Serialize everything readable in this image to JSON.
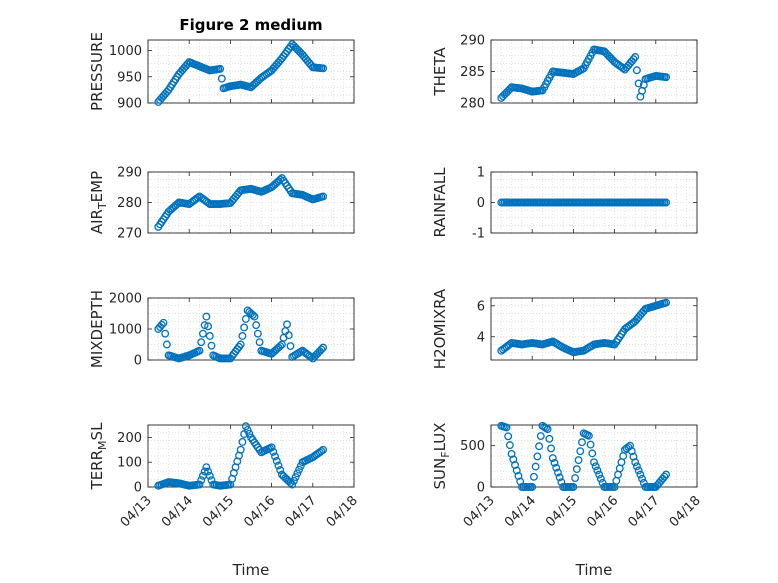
{
  "figure": {
    "title": "Figure 2 medium",
    "xlabel": "Time",
    "x_ticks": [
      "04/13",
      "04/14",
      "04/15",
      "04/16",
      "04/17",
      "04/18"
    ]
  },
  "colors": {
    "marker": "#0072BD",
    "grid": "#d9d9d9",
    "axis": "#262626"
  },
  "chart_data": [
    {
      "type": "scatter",
      "ylabel": "PRESSURE",
      "ylim": [
        900,
        1020
      ],
      "yticks": [
        900,
        950,
        1000
      ],
      "xlim": [
        "04/13",
        "04/18"
      ],
      "grid": true,
      "marker": "open-circle",
      "x": [
        "04/13 06:00",
        "04/13 12:00",
        "04/13 18:00",
        "04/14 00:00",
        "04/14 06:00",
        "04/14 12:00",
        "04/14 18:00",
        "04/14 20:00",
        "04/15 00:00",
        "04/15 06:00",
        "04/15 12:00",
        "04/15 18:00",
        "04/16 00:00",
        "04/16 06:00",
        "04/16 12:00",
        "04/16 18:00",
        "04/17 00:00",
        "04/17 06:00"
      ],
      "y": [
        902,
        925,
        955,
        978,
        970,
        962,
        965,
        928,
        932,
        935,
        930,
        948,
        962,
        985,
        1012,
        992,
        968,
        966
      ]
    },
    {
      "type": "scatter",
      "ylabel": "THETA",
      "ylim": [
        280,
        290
      ],
      "yticks": [
        280,
        285,
        290
      ],
      "xlim": [
        "04/13",
        "04/18"
      ],
      "grid": true,
      "marker": "open-circle",
      "x": [
        "04/13 06:00",
        "04/13 12:00",
        "04/13 18:00",
        "04/14 00:00",
        "04/14 06:00",
        "04/14 12:00",
        "04/14 18:00",
        "04/15 00:00",
        "04/15 06:00",
        "04/15 12:00",
        "04/15 18:00",
        "04/16 00:00",
        "04/16 06:00",
        "04/16 12:00",
        "04/16 15:00",
        "04/16 18:00",
        "04/17 00:00",
        "04/17 06:00"
      ],
      "y": [
        280.8,
        282.5,
        282.3,
        281.8,
        282.0,
        285.0,
        284.8,
        284.6,
        285.5,
        288.5,
        288.2,
        286.5,
        285.3,
        287.3,
        281.0,
        283.8,
        284.3,
        284.1
      ]
    },
    {
      "type": "scatter",
      "ylabel": "AIR_TEMP",
      "ylim": [
        270,
        290
      ],
      "yticks": [
        270,
        280,
        290
      ],
      "xlim": [
        "04/13",
        "04/18"
      ],
      "grid": true,
      "marker": "open-circle",
      "x": [
        "04/13 06:00",
        "04/13 12:00",
        "04/13 18:00",
        "04/14 00:00",
        "04/14 06:00",
        "04/14 12:00",
        "04/14 18:00",
        "04/15 00:00",
        "04/15 06:00",
        "04/15 12:00",
        "04/15 18:00",
        "04/16 00:00",
        "04/16 06:00",
        "04/16 12:00",
        "04/16 18:00",
        "04/17 00:00",
        "04/17 06:00"
      ],
      "y": [
        272,
        277,
        280,
        279.5,
        282,
        279.5,
        279.5,
        279.8,
        284,
        284.5,
        283.5,
        285,
        288,
        283,
        282.5,
        281,
        282
      ]
    },
    {
      "type": "scatter",
      "ylabel": "RAINFALL",
      "ylim": [
        -1,
        1
      ],
      "yticks": [
        -1,
        0,
        1
      ],
      "xlim": [
        "04/13",
        "04/18"
      ],
      "grid": true,
      "marker": "open-circle",
      "x": [
        "04/13 06:00",
        "04/13 12:00",
        "04/13 18:00",
        "04/14 00:00",
        "04/14 06:00",
        "04/14 12:00",
        "04/14 18:00",
        "04/15 00:00",
        "04/15 06:00",
        "04/15 12:00",
        "04/15 18:00",
        "04/16 00:00",
        "04/16 06:00",
        "04/16 12:00",
        "04/16 18:00",
        "04/17 00:00",
        "04/17 06:00"
      ],
      "y": [
        0,
        0,
        0,
        0,
        0,
        0,
        0,
        0,
        0,
        0,
        0,
        0,
        0,
        0,
        0,
        0,
        0
      ]
    },
    {
      "type": "scatter",
      "ylabel": "MIXDEPTH",
      "ylim": [
        0,
        2000
      ],
      "yticks": [
        0,
        1000,
        2000
      ],
      "xlim": [
        "04/13",
        "04/18"
      ],
      "grid": true,
      "marker": "open-circle",
      "x": [
        "04/13 06:00",
        "04/13 09:00",
        "04/13 12:00",
        "04/13 18:00",
        "04/14 00:00",
        "04/14 06:00",
        "04/14 10:00",
        "04/14 14:00",
        "04/14 18:00",
        "04/15 00:00",
        "04/15 06:00",
        "04/15 10:00",
        "04/15 14:00",
        "04/15 18:00",
        "04/16 00:00",
        "04/16 06:00",
        "04/16 09:00",
        "04/16 12:00",
        "04/16 18:00",
        "04/17 00:00",
        "04/17 06:00"
      ],
      "y": [
        1000,
        1200,
        150,
        50,
        150,
        300,
        1400,
        150,
        50,
        50,
        500,
        1600,
        1400,
        300,
        200,
        500,
        1150,
        100,
        300,
        50,
        400
      ]
    },
    {
      "type": "scatter",
      "ylabel": "H2OMIXRA",
      "ylim": [
        2.5,
        6.5
      ],
      "yticks": [
        4,
        6
      ],
      "xlim": [
        "04/13",
        "04/18"
      ],
      "grid": true,
      "marker": "open-circle",
      "x": [
        "04/13 06:00",
        "04/13 12:00",
        "04/13 18:00",
        "04/14 00:00",
        "04/14 06:00",
        "04/14 12:00",
        "04/14 18:00",
        "04/15 00:00",
        "04/15 06:00",
        "04/15 12:00",
        "04/15 18:00",
        "04/16 00:00",
        "04/16 06:00",
        "04/16 12:00",
        "04/16 18:00",
        "04/17 00:00",
        "04/17 06:00"
      ],
      "y": [
        3.1,
        3.6,
        3.5,
        3.6,
        3.5,
        3.7,
        3.3,
        3.0,
        3.1,
        3.5,
        3.6,
        3.5,
        4.5,
        5.0,
        5.8,
        6.0,
        6.2
      ]
    },
    {
      "type": "scatter",
      "ylabel": "TERR_MSL",
      "ylim": [
        0,
        250
      ],
      "yticks": [
        0,
        100,
        200
      ],
      "xlim": [
        "04/13",
        "04/18"
      ],
      "grid": true,
      "marker": "open-circle",
      "x": [
        "04/13 06:00",
        "04/13 12:00",
        "04/13 18:00",
        "04/14 00:00",
        "04/14 06:00",
        "04/14 10:00",
        "04/14 14:00",
        "04/14 18:00",
        "04/15 00:00",
        "04/15 06:00",
        "04/15 09:00",
        "04/15 12:00",
        "04/15 18:00",
        "04/16 00:00",
        "04/16 06:00",
        "04/16 12:00",
        "04/16 18:00",
        "04/17 00:00",
        "04/17 06:00"
      ],
      "y": [
        5,
        20,
        15,
        5,
        10,
        80,
        10,
        5,
        10,
        150,
        245,
        200,
        140,
        160,
        50,
        10,
        100,
        120,
        150
      ]
    },
    {
      "type": "scatter",
      "ylabel": "SUN_FLUX",
      "ylim": [
        0,
        750
      ],
      "yticks": [
        0,
        500
      ],
      "xlim": [
        "04/13",
        "04/18"
      ],
      "grid": true,
      "marker": "open-circle",
      "x": [
        "04/13 06:00",
        "04/13 09:00",
        "04/13 12:00",
        "04/13 18:00",
        "04/14 00:00",
        "04/14 06:00",
        "04/14 09:00",
        "04/14 12:00",
        "04/14 18:00",
        "04/15 00:00",
        "04/15 06:00",
        "04/15 09:00",
        "04/15 12:00",
        "04/15 18:00",
        "04/16 00:00",
        "04/16 06:00",
        "04/16 09:00",
        "04/16 12:00",
        "04/16 18:00",
        "04/17 00:00",
        "04/17 06:00"
      ],
      "y": [
        740,
        720,
        400,
        0,
        0,
        740,
        700,
        350,
        0,
        0,
        650,
        620,
        300,
        0,
        0,
        450,
        500,
        300,
        0,
        0,
        150
      ]
    }
  ]
}
